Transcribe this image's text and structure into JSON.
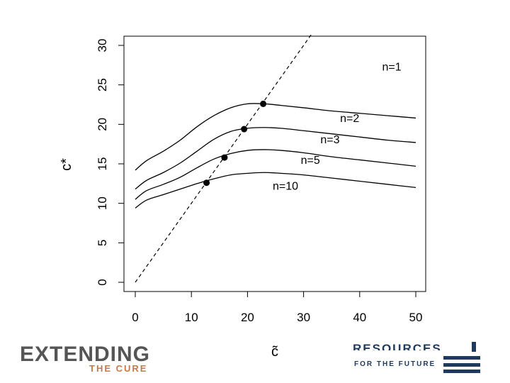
{
  "chart_data": {
    "type": "line",
    "xlabel": "c̃",
    "ylabel": "c*",
    "xlim": [
      0,
      50
    ],
    "ylim": [
      0,
      30
    ],
    "x_ticks": [
      0,
      10,
      20,
      30,
      40,
      50
    ],
    "y_ticks": [
      0,
      5,
      10,
      15,
      20,
      25,
      30
    ],
    "grid": false,
    "series": [
      {
        "name": "n=2",
        "x": [
          0,
          2,
          5,
          8,
          11,
          14,
          17,
          20,
          23,
          26,
          30,
          35,
          40,
          45,
          50
        ],
        "y": [
          14.2,
          15.4,
          16.6,
          18.0,
          19.7,
          21.1,
          22.1,
          22.6,
          22.6,
          22.4,
          22.1,
          21.7,
          21.4,
          21.1,
          20.8
        ]
      },
      {
        "name": "n=3",
        "x": [
          0,
          2,
          5,
          8,
          11,
          14,
          17,
          20,
          23,
          26,
          30,
          35,
          40,
          45,
          50
        ],
        "y": [
          11.8,
          12.9,
          13.9,
          15.1,
          16.6,
          18.1,
          19.1,
          19.5,
          19.6,
          19.5,
          19.2,
          18.8,
          18.4,
          18.0,
          17.7
        ]
      },
      {
        "name": "n=5",
        "x": [
          0,
          2,
          5,
          8,
          11,
          14,
          17,
          20,
          23,
          26,
          30,
          35,
          40,
          45,
          50
        ],
        "y": [
          10.5,
          11.6,
          12.4,
          13.3,
          14.5,
          15.6,
          16.3,
          16.7,
          16.8,
          16.7,
          16.4,
          15.9,
          15.5,
          15.1,
          14.7
        ]
      },
      {
        "name": "n=10",
        "x": [
          0,
          2,
          5,
          8,
          11,
          14,
          17,
          20,
          23,
          26,
          30,
          35,
          40,
          45,
          50
        ],
        "y": [
          9.4,
          10.4,
          11.1,
          11.8,
          12.5,
          13.1,
          13.6,
          13.8,
          13.9,
          13.8,
          13.6,
          13.2,
          12.8,
          12.4,
          12.0
        ]
      }
    ],
    "diagonal": {
      "x": [
        0,
        31.5
      ],
      "y": [
        0,
        31.5
      ]
    },
    "points": [
      {
        "x": 12.7,
        "y": 12.6
      },
      {
        "x": 15.9,
        "y": 15.8
      },
      {
        "x": 19.4,
        "y": 19.4
      },
      {
        "x": 22.8,
        "y": 22.6
      }
    ],
    "annotations": [
      {
        "text": "n=1",
        "x": 44,
        "y": 26.8
      },
      {
        "text": "n=2",
        "x": 36.5,
        "y": 20.3
      },
      {
        "text": "n=3",
        "x": 33,
        "y": 17.6
      },
      {
        "text": "n=5",
        "x": 29.5,
        "y": 15.0
      },
      {
        "text": "n=10",
        "x": 24.5,
        "y": 11.7
      }
    ]
  },
  "logos": {
    "left_main": "EXTENDING",
    "left_sub": "THE CURE",
    "right_main": "RESOURCES",
    "right_sub": "FOR THE FUTURE"
  }
}
